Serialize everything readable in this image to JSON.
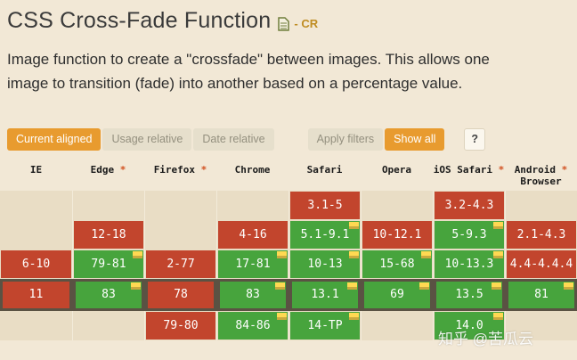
{
  "theme": {
    "page_background": "#f2e8d6",
    "accent_orange": "#e89b2f"
  },
  "header": {
    "title": "CSS Cross-Fade Function",
    "spec_icon": "document-icon",
    "status": "- CR"
  },
  "description": "Image function to create a \"crossfade\" between images. This allows one image to transition (fade) into another based on a percentage value.",
  "toolbar": {
    "view_buttons": [
      {
        "label": "Current aligned",
        "active": true
      },
      {
        "label": "Usage relative",
        "active": false
      },
      {
        "label": "Date relative",
        "active": false
      }
    ],
    "filter_buttons": [
      {
        "label": "Apply filters",
        "active": false
      },
      {
        "label": "Show all",
        "active": true
      }
    ],
    "help_button": "?"
  },
  "support_table": {
    "browsers": [
      {
        "lines": [
          "IE"
        ],
        "asterisk": false
      },
      {
        "lines": [
          "Edge"
        ],
        "asterisk": true
      },
      {
        "lines": [
          "Firefox"
        ],
        "asterisk": true
      },
      {
        "lines": [
          "Chrome"
        ],
        "asterisk": false
      },
      {
        "lines": [
          "Safari"
        ],
        "asterisk": false
      },
      {
        "lines": [
          "Opera"
        ],
        "asterisk": false
      },
      {
        "lines": [
          "iOS Safari"
        ],
        "asterisk": true
      },
      {
        "lines": [
          "Android",
          "Browser"
        ],
        "asterisk": true
      }
    ],
    "legend": {
      "supported_color": "#47a43d",
      "unsupported_color": "#c2452d",
      "note_color": "#ffd952",
      "current_row_color": "#5a5243"
    },
    "rows": [
      {
        "current": false,
        "cells": [
          null,
          null,
          null,
          null,
          {
            "v": "3.1-5",
            "s": "n"
          },
          null,
          {
            "v": "3.2-4.3",
            "s": "n"
          },
          null
        ]
      },
      {
        "current": false,
        "cells": [
          null,
          {
            "v": "12-18",
            "s": "n"
          },
          null,
          {
            "v": "4-16",
            "s": "n"
          },
          {
            "v": "5.1-9.1",
            "s": "y",
            "note": true
          },
          {
            "v": "10-12.1",
            "s": "n"
          },
          {
            "v": "5-9.3",
            "s": "y",
            "note": true
          },
          {
            "v": "2.1-4.3",
            "s": "n"
          }
        ]
      },
      {
        "current": false,
        "cells": [
          {
            "v": "6-10",
            "s": "n"
          },
          {
            "v": "79-81",
            "s": "y",
            "note": true
          },
          {
            "v": "2-77",
            "s": "n"
          },
          {
            "v": "17-81",
            "s": "y",
            "note": true
          },
          {
            "v": "10-13",
            "s": "y",
            "note": true
          },
          {
            "v": "15-68",
            "s": "y",
            "note": true
          },
          {
            "v": "10-13.3",
            "s": "y",
            "note": true
          },
          {
            "v": "4.4-4.4.4",
            "s": "n"
          }
        ]
      },
      {
        "current": true,
        "cells": [
          {
            "v": "11",
            "s": "n"
          },
          {
            "v": "83",
            "s": "y",
            "note": true
          },
          {
            "v": "78",
            "s": "n"
          },
          {
            "v": "83",
            "s": "y",
            "note": true
          },
          {
            "v": "13.1",
            "s": "y",
            "note": true
          },
          {
            "v": "69",
            "s": "y",
            "note": true
          },
          {
            "v": "13.5",
            "s": "y",
            "note": true
          },
          {
            "v": "81",
            "s": "y",
            "note": true
          }
        ]
      },
      {
        "current": false,
        "cells": [
          null,
          null,
          {
            "v": "79-80",
            "s": "n"
          },
          {
            "v": "84-86",
            "s": "y",
            "note": true
          },
          {
            "v": "14-TP",
            "s": "y",
            "note": true
          },
          null,
          {
            "v": "14.0",
            "s": "y",
            "note": true
          },
          null
        ]
      }
    ]
  },
  "watermark": "知乎 @苦瓜云"
}
